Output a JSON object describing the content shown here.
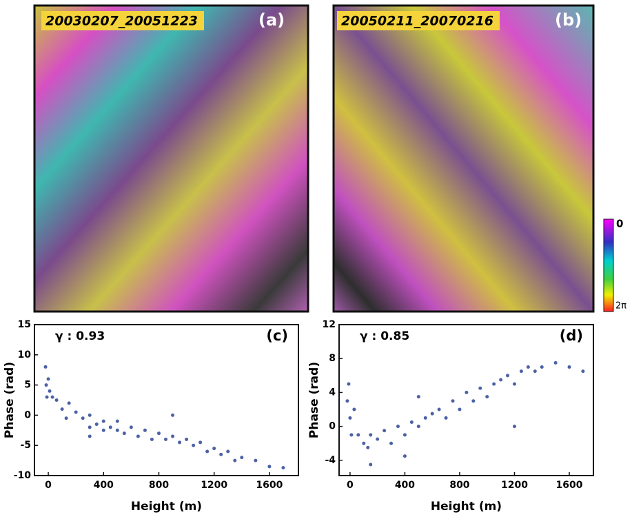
{
  "images": [
    {
      "label": "20030207_20051223",
      "tag": "(a)"
    },
    {
      "label": "20050211_20070216",
      "tag": "(b)"
    }
  ],
  "colorbar": {
    "top_label": "0",
    "bottom_label": "2π"
  },
  "chart_data": [
    {
      "type": "scatter",
      "label": "(c)",
      "annotation": "γ : 0.93",
      "xlabel": "Height (m)",
      "ylabel": "Phase (rad)",
      "color": "#1f3a8f",
      "x": [
        -20,
        -15,
        -10,
        0,
        10,
        30,
        60,
        100,
        130,
        150,
        200,
        250,
        300,
        300,
        350,
        400,
        400,
        450,
        500,
        500,
        550,
        600,
        650,
        700,
        750,
        800,
        850,
        900,
        950,
        1000,
        1050,
        1100,
        1150,
        1200,
        1250,
        1300,
        1350,
        1400,
        1500,
        1600,
        1700,
        900,
        300
      ],
      "values": [
        8,
        5,
        3,
        6,
        4,
        3,
        2.5,
        1,
        -0.5,
        2,
        0.5,
        -0.5,
        0,
        -2,
        -1.5,
        -1,
        -2.5,
        -2,
        -2.5,
        -1,
        -3,
        -2,
        -3.5,
        -2.5,
        -4,
        -3,
        -4,
        -3.5,
        -4.5,
        -4,
        -5,
        -4.5,
        -6,
        -5.5,
        -6.5,
        -6,
        -7.5,
        -7,
        -7.5,
        -8.5,
        -8.7,
        0,
        -3.5
      ],
      "xlim": [
        -100,
        1810
      ],
      "ylim": [
        -10,
        15
      ],
      "xticks": [
        0,
        400,
        800,
        1200,
        1600
      ],
      "yticks": [
        -10,
        -5,
        0,
        5,
        10,
        15
      ]
    },
    {
      "type": "scatter",
      "label": "(d)",
      "annotation": "γ : 0.85",
      "xlabel": "Height (m)",
      "ylabel": "Phase (rad)",
      "color": "#1f3a8f",
      "x": [
        -20,
        -10,
        0,
        10,
        30,
        60,
        100,
        130,
        150,
        150,
        200,
        250,
        300,
        350,
        400,
        400,
        450,
        500,
        550,
        600,
        650,
        700,
        750,
        800,
        850,
        900,
        950,
        1000,
        1050,
        1100,
        1150,
        1200,
        1250,
        1300,
        1350,
        1400,
        1500,
        1600,
        1700,
        1200,
        500
      ],
      "values": [
        3,
        5,
        1,
        -1,
        2,
        -1,
        -2,
        -2.5,
        -4.5,
        -1,
        -1.5,
        -0.5,
        -2,
        0,
        -1,
        -3.5,
        0.5,
        0,
        1,
        1.5,
        2,
        1,
        3,
        2,
        4,
        3,
        4.5,
        3.5,
        5,
        5.5,
        6,
        5,
        6.5,
        7,
        6.5,
        7,
        7.5,
        7,
        6.5,
        0,
        3.5
      ],
      "xlim": [
        -80,
        1776
      ],
      "ylim": [
        -5.8,
        12
      ],
      "xticks": [
        0,
        400,
        800,
        1200,
        1600
      ],
      "yticks": [
        -4,
        0,
        4,
        8,
        12
      ]
    }
  ]
}
